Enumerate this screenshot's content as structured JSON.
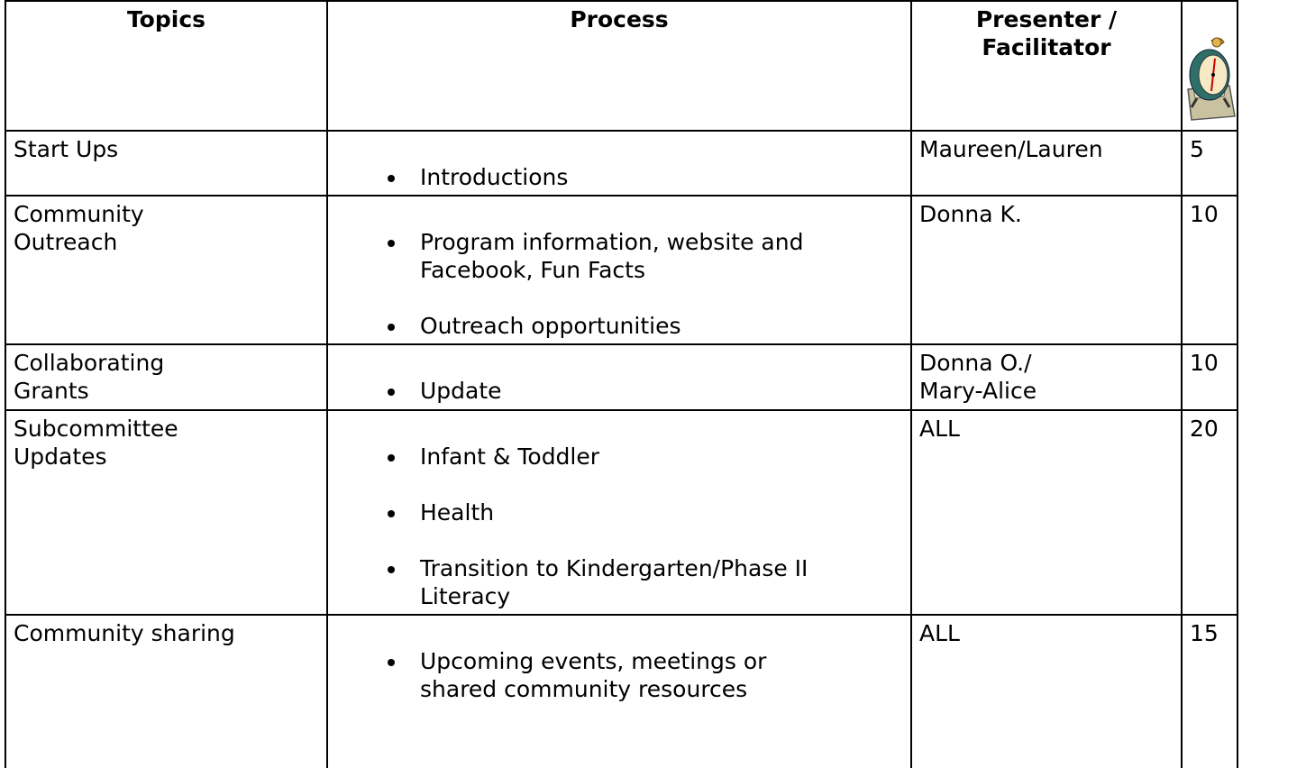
{
  "table": {
    "header": [
      "Topics",
      "Process",
      "Presenter /\nFacilitator"
    ],
    "rows": [
      {
        "topic": "Start Ups",
        "process": [
          "Introductions"
        ],
        "presenter": "Maureen/Lauren",
        "minutes": 5
      },
      {
        "topic": "Community\nOutreach",
        "process": [
          "Program information, website and\nFacebook, Fun Facts",
          "Outreach opportunities"
        ],
        "presenter": "Donna K.",
        "minutes": 10
      },
      {
        "topic": "Collaborating\nGrants",
        "process": [
          "Update"
        ],
        "presenter": "Donna O./\nMary-Alice",
        "minutes": 10
      },
      {
        "topic": "Subcommittee\nUpdates",
        "process": [
          "Infant & Toddler",
          "Health",
          "Transition to Kindergarten/Phase II\nLiteracy"
        ],
        "presenter": "ALL",
        "minutes": 20
      },
      {
        "topic": "Community sharing",
        "process": [
          "Upcoming events, meetings or\nshared community resources"
        ],
        "presenter": "ALL",
        "minutes": 15
      }
    ]
  }
}
